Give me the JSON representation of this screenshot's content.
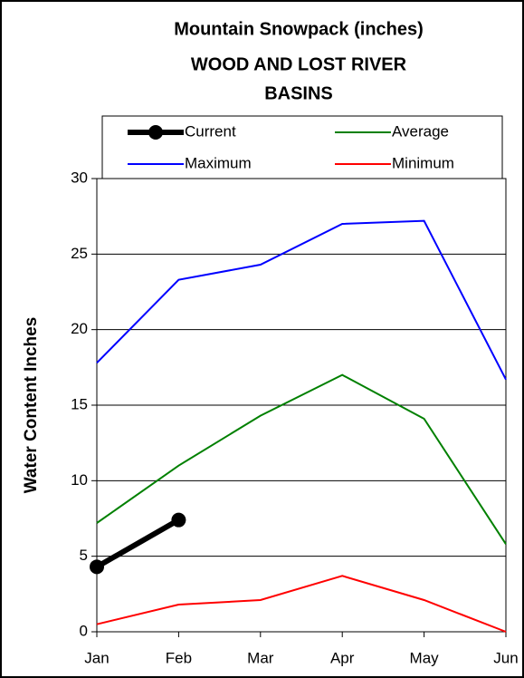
{
  "chart_data": {
    "type": "line",
    "title": [
      "Mountain Snowpack (inches)",
      "WOOD AND LOST RIVER",
      "BASINS"
    ],
    "y_label": "Water Content Inches",
    "categories": [
      "Jan",
      "Feb",
      "Mar",
      "Apr",
      "May",
      "Jun"
    ],
    "series": [
      {
        "name": "Current",
        "color": "#000000",
        "values": [
          4.3,
          7.4,
          null,
          null,
          null,
          null
        ]
      },
      {
        "name": "Average",
        "color": "#008000",
        "values": [
          7.2,
          11.0,
          14.3,
          17.0,
          14.1,
          5.8
        ]
      },
      {
        "name": "Maximum",
        "color": "#0000ff",
        "values": [
          17.8,
          23.3,
          24.3,
          27.0,
          27.2,
          16.7
        ]
      },
      {
        "name": "Minimum",
        "color": "#ff0000",
        "values": [
          0.5,
          1.8,
          2.1,
          3.7,
          2.1,
          0
        ]
      }
    ],
    "ylim": [
      0,
      30
    ],
    "yticks": [
      0,
      5,
      10,
      15,
      20,
      25,
      30
    ],
    "grid": true
  }
}
